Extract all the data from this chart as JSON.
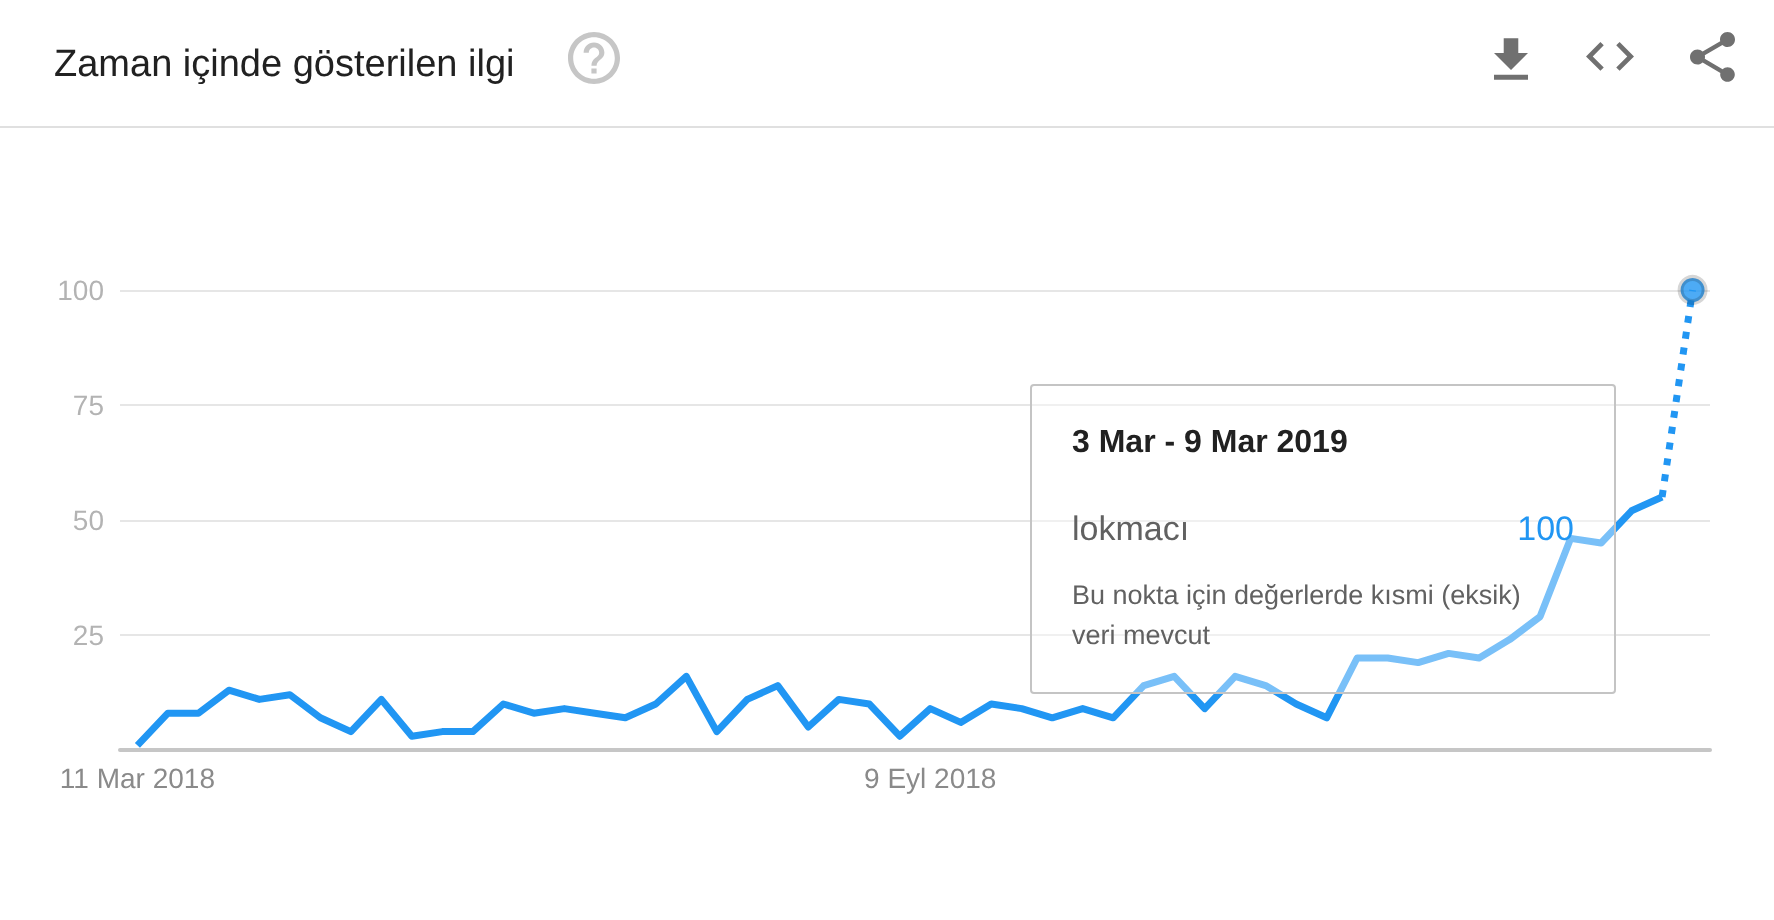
{
  "chart_data": {
    "type": "line",
    "title": "Zaman içinde gösterilen ilgi",
    "x": [
      "2018-03-11",
      "2018-03-18",
      "2018-03-25",
      "2018-04-01",
      "2018-04-08",
      "2018-04-15",
      "2018-04-22",
      "2018-04-29",
      "2018-05-06",
      "2018-05-13",
      "2018-05-20",
      "2018-05-27",
      "2018-06-03",
      "2018-06-10",
      "2018-06-17",
      "2018-06-24",
      "2018-07-01",
      "2018-07-08",
      "2018-07-15",
      "2018-07-22",
      "2018-07-29",
      "2018-08-05",
      "2018-08-12",
      "2018-08-19",
      "2018-08-26",
      "2018-09-02",
      "2018-09-09",
      "2018-09-16",
      "2018-09-23",
      "2018-09-30",
      "2018-10-07",
      "2018-10-14",
      "2018-10-21",
      "2018-10-28",
      "2018-11-04",
      "2018-11-11",
      "2018-11-18",
      "2018-11-25",
      "2018-12-02",
      "2018-12-09",
      "2018-12-16",
      "2018-12-23",
      "2018-12-30",
      "2019-01-06",
      "2019-01-13",
      "2019-01-20",
      "2019-01-27",
      "2019-02-03",
      "2019-02-10",
      "2019-02-17",
      "2019-02-24",
      "2019-03-03"
    ],
    "series": [
      {
        "color": "#2196f3",
        "line_style": "solid",
        "values": [
          1,
          8,
          8,
          13,
          11,
          12,
          7,
          4,
          11,
          3,
          4,
          4,
          10,
          8,
          9,
          8,
          7,
          10,
          16,
          4,
          11,
          14,
          5,
          11,
          10,
          3,
          9,
          6,
          10,
          9,
          7,
          9,
          7,
          14,
          16,
          9,
          16,
          14,
          10,
          7,
          20,
          20,
          19,
          21,
          20,
          24,
          29,
          46,
          45,
          52,
          55,
          null
        ]
      },
      {
        "color": "#2196f3",
        "line_style": "dotted",
        "values": [
          null,
          null,
          null,
          null,
          null,
          null,
          null,
          null,
          null,
          null,
          null,
          null,
          null,
          null,
          null,
          null,
          null,
          null,
          null,
          null,
          null,
          null,
          null,
          null,
          null,
          null,
          null,
          null,
          null,
          null,
          null,
          null,
          null,
          null,
          null,
          null,
          null,
          null,
          null,
          null,
          null,
          null,
          null,
          null,
          null,
          null,
          null,
          null,
          null,
          null,
          55,
          100
        ]
      },
      {
        "type": "scatter",
        "color": "#2196f3",
        "marker": "circle",
        "x": [
          "2019-03-03"
        ],
        "values": [
          100
        ]
      }
    ],
    "xlim": [
      "2018-03-07",
      "2019-03-07"
    ],
    "xticks": [
      {
        "value": "2018-03-11",
        "label": "11 Mar 2018"
      },
      {
        "value": "2018-09-09",
        "label": "9 Eyl 2018"
      }
    ],
    "ylim": [
      0,
      100
    ],
    "yticks": [
      25,
      50,
      75,
      100
    ],
    "grid": "y",
    "annotations": [
      "3 Mar - 9 Mar 2019",
      "lokmacı",
      "100",
      "Bu nokta için değerlerde kısmi (eksik) veri mevcut"
    ]
  }
}
